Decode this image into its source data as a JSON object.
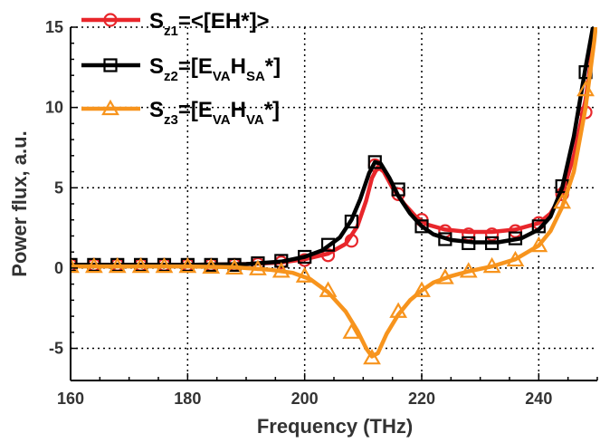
{
  "chart_data": {
    "type": "line",
    "xlabel": "Frequency (THz)",
    "ylabel": "Power flux, a.u.",
    "xlim": [
      160,
      250
    ],
    "ylim": [
      -7,
      15
    ],
    "xticks": [
      "160",
      "180",
      "200",
      "220",
      "240"
    ],
    "yticks": [
      "-5",
      "0",
      "5",
      "10",
      "15"
    ],
    "grid": true,
    "legend_position": "top-left",
    "series": [
      {
        "legend": {
          "main": "S",
          "sub1": "z1",
          "rest": "=<[EH*]>"
        },
        "color": "#e8262b",
        "marker": "circle",
        "curve": [
          [
            160,
            0.2
          ],
          [
            170,
            0.2
          ],
          [
            180,
            0.2
          ],
          [
            190,
            0.25
          ],
          [
            196,
            0.35
          ],
          [
            200,
            0.55
          ],
          [
            204,
            0.9
          ],
          [
            207,
            1.5
          ],
          [
            209,
            2.6
          ],
          [
            210.5,
            4.2
          ],
          [
            211.5,
            5.6
          ],
          [
            212.5,
            6.3
          ],
          [
            213.5,
            6.0
          ],
          [
            215,
            5.0
          ],
          [
            217,
            4.0
          ],
          [
            219,
            3.2
          ],
          [
            221,
            2.7
          ],
          [
            224,
            2.4
          ],
          [
            228,
            2.25
          ],
          [
            232,
            2.25
          ],
          [
            236,
            2.4
          ],
          [
            240,
            2.8
          ],
          [
            242,
            3.4
          ],
          [
            244,
            4.6
          ],
          [
            246,
            7.0
          ],
          [
            248,
            10.5
          ],
          [
            249.5,
            14.5
          ],
          [
            250,
            16
          ]
        ],
        "points": [
          [
            160,
            0.2
          ],
          [
            164,
            0.2
          ],
          [
            168,
            0.2
          ],
          [
            172,
            0.2
          ],
          [
            176,
            0.2
          ],
          [
            180,
            0.2
          ],
          [
            184,
            0.2
          ],
          [
            188,
            0.2
          ],
          [
            192,
            0.25
          ],
          [
            196,
            0.35
          ],
          [
            200,
            0.5
          ],
          [
            204,
            0.8
          ],
          [
            208,
            1.7
          ],
          [
            212,
            6.4
          ],
          [
            216,
            4.6
          ],
          [
            220,
            3.0
          ],
          [
            224,
            2.3
          ],
          [
            228,
            2.1
          ],
          [
            232,
            2.1
          ],
          [
            236,
            2.3
          ],
          [
            240,
            2.8
          ],
          [
            244,
            4.6
          ],
          [
            248,
            9.7
          ]
        ]
      },
      {
        "legend": {
          "main": "S",
          "sub1": "z2",
          "mid": "=[E",
          "sub2": "VA",
          "mid2": "H",
          "sub3": "SA",
          "rest": "*]"
        },
        "color": "#000000",
        "marker": "square",
        "curve": [
          [
            160,
            0.2
          ],
          [
            170,
            0.2
          ],
          [
            180,
            0.2
          ],
          [
            190,
            0.25
          ],
          [
            196,
            0.4
          ],
          [
            200,
            0.7
          ],
          [
            203,
            1.1
          ],
          [
            206,
            1.9
          ],
          [
            208,
            3.0
          ],
          [
            209.5,
            4.3
          ],
          [
            211,
            5.9
          ],
          [
            212,
            6.6
          ],
          [
            213,
            6.5
          ],
          [
            214.5,
            5.6
          ],
          [
            216,
            4.5
          ],
          [
            218,
            3.4
          ],
          [
            220,
            2.6
          ],
          [
            222,
            2.1
          ],
          [
            225,
            1.75
          ],
          [
            229,
            1.6
          ],
          [
            233,
            1.6
          ],
          [
            237,
            1.85
          ],
          [
            240,
            2.4
          ],
          [
            242,
            3.2
          ],
          [
            244,
            5.0
          ],
          [
            246,
            8.2
          ],
          [
            248,
            12.5
          ],
          [
            249.5,
            15.5
          ],
          [
            250,
            16
          ]
        ],
        "points": [
          [
            160,
            0.2
          ],
          [
            164,
            0.2
          ],
          [
            168,
            0.2
          ],
          [
            172,
            0.2
          ],
          [
            176,
            0.2
          ],
          [
            180,
            0.2
          ],
          [
            184,
            0.2
          ],
          [
            188,
            0.2
          ],
          [
            192,
            0.3
          ],
          [
            196,
            0.45
          ],
          [
            200,
            0.7
          ],
          [
            204,
            1.45
          ],
          [
            208,
            2.9
          ],
          [
            212,
            6.6
          ],
          [
            216,
            4.9
          ],
          [
            220,
            2.6
          ],
          [
            224,
            1.8
          ],
          [
            228,
            1.55
          ],
          [
            232,
            1.55
          ],
          [
            236,
            1.85
          ],
          [
            240,
            2.6
          ],
          [
            244,
            5.1
          ],
          [
            248,
            12.2
          ]
        ]
      },
      {
        "legend": {
          "main": "S",
          "sub1": "z3",
          "mid": "=[E",
          "sub2": "VA",
          "mid2": "H",
          "sub3": "VA",
          "rest": "*]"
        },
        "color": "#f7941d",
        "marker": "triangle",
        "curve": [
          [
            160,
            0.1
          ],
          [
            170,
            0.1
          ],
          [
            180,
            0.1
          ],
          [
            188,
            0.05
          ],
          [
            194,
            -0.1
          ],
          [
            198,
            -0.3
          ],
          [
            201,
            -0.7
          ],
          [
            204,
            -1.5
          ],
          [
            207,
            -2.7
          ],
          [
            209,
            -3.9
          ],
          [
            210.5,
            -5.0
          ],
          [
            211.5,
            -5.5
          ],
          [
            212.5,
            -5.3
          ],
          [
            214,
            -4.1
          ],
          [
            216,
            -2.9
          ],
          [
            218,
            -2.0
          ],
          [
            220,
            -1.4
          ],
          [
            222,
            -0.9
          ],
          [
            225,
            -0.5
          ],
          [
            228,
            -0.2
          ],
          [
            232,
            0.1
          ],
          [
            236,
            0.55
          ],
          [
            240,
            1.4
          ],
          [
            242,
            2.3
          ],
          [
            244,
            3.8
          ],
          [
            246,
            6.0
          ],
          [
            248,
            10.0
          ],
          [
            249.5,
            14.2
          ],
          [
            250,
            16
          ]
        ],
        "points": [
          [
            160,
            0.1
          ],
          [
            164,
            0.1
          ],
          [
            168,
            0.1
          ],
          [
            172,
            0.1
          ],
          [
            176,
            0.1
          ],
          [
            180,
            0.1
          ],
          [
            184,
            0.05
          ],
          [
            188,
            0.0
          ],
          [
            192,
            -0.05
          ],
          [
            196,
            -0.2
          ],
          [
            200,
            -0.5
          ],
          [
            204,
            -1.4
          ],
          [
            208,
            -4.0
          ],
          [
            211.5,
            -5.6
          ],
          [
            216,
            -2.7
          ],
          [
            220,
            -1.4
          ],
          [
            224,
            -0.6
          ],
          [
            228,
            -0.2
          ],
          [
            232,
            0.1
          ],
          [
            236,
            0.5
          ],
          [
            240,
            1.4
          ],
          [
            244,
            4.1
          ],
          [
            248,
            11.1
          ]
        ]
      }
    ]
  }
}
